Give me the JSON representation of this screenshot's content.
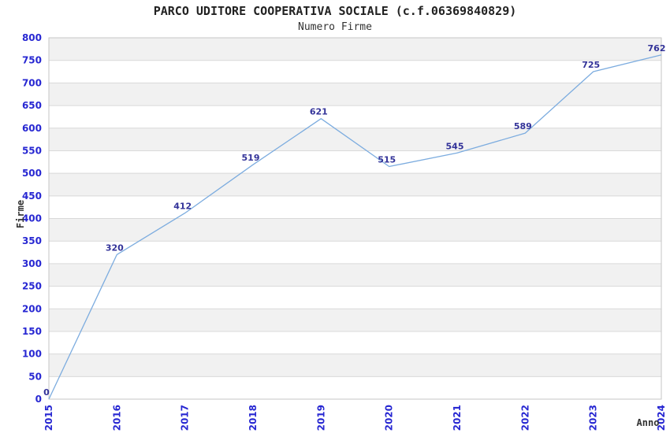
{
  "chart_data": {
    "type": "line",
    "title": "PARCO UDITORE COOPERATIVA SOCIALE (c.f.06369840829)",
    "subtitle": "Numero Firme",
    "xlabel": "Anno",
    "ylabel": "Firme",
    "x": [
      "2015",
      "2016",
      "2017",
      "2018",
      "2019",
      "2020",
      "2021",
      "2022",
      "2023",
      "2024"
    ],
    "values": [
      0,
      320,
      412,
      519,
      621,
      515,
      545,
      589,
      725,
      762
    ],
    "ylim": [
      0,
      800
    ],
    "ytick_step": 50,
    "grid": true,
    "legend": false,
    "alternating_bands": true,
    "colors": {
      "line": "#7cacdf",
      "tick_label": "#2727d2",
      "data_label": "#333399",
      "grid_line": "#d9d9d9",
      "band_fill": "#f1f1f1",
      "plot_border": "#c6c6c6",
      "title_color": "#222222",
      "axis_title_color": "#333333",
      "background": "#ffffff"
    }
  }
}
